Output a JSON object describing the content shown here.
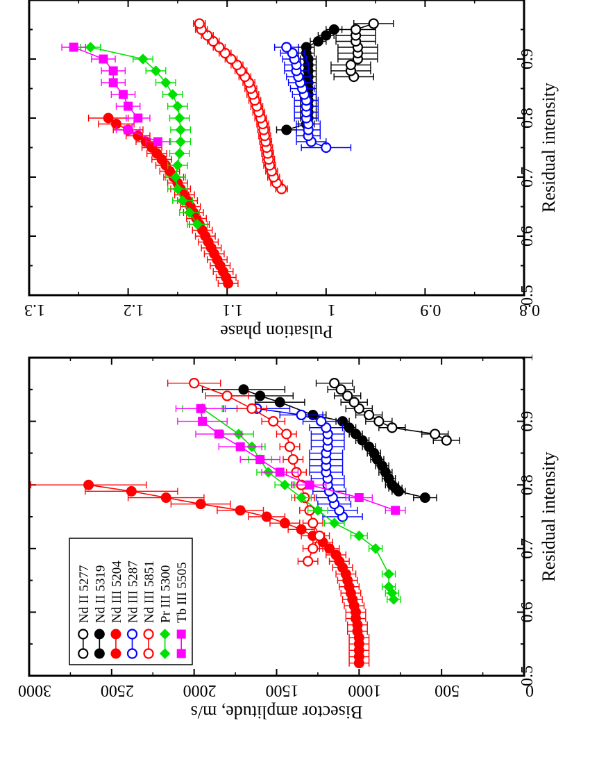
{
  "chart_data": [
    {
      "id": "amplitude",
      "type": "scatter",
      "title": "",
      "xlabel": "Residual intensity",
      "ylabel": "Bisector amplitude, m/s",
      "xlim": [
        0.5,
        1.0
      ],
      "ylim": [
        0,
        3000
      ],
      "xticks": [
        0.5,
        0.6,
        0.7,
        0.8,
        0.9,
        1.0
      ],
      "xtick_labels": [
        "0.5",
        "0.6",
        "0.7",
        "0.8",
        "0.9",
        "1"
      ],
      "yticks": [
        0,
        500,
        1000,
        1500,
        2000,
        2500,
        3000
      ],
      "ytick_labels": [
        "0",
        "500",
        "1000",
        "1500",
        "2000",
        "2500",
        "3000"
      ],
      "legend_position": "top-left",
      "series": [
        {
          "name": "Nd II  5277",
          "color": "#000000",
          "marker": "circle-open",
          "x": [
            0.87,
            0.88,
            0.89,
            0.9,
            0.91,
            0.92,
            0.93,
            0.94,
            0.95,
            0.96
          ],
          "y": [
            470,
            540,
            800,
            880,
            940,
            1000,
            1030,
            1070,
            1110,
            1150
          ],
          "err": [
            80,
            80,
            80,
            80,
            80,
            80,
            80,
            80,
            80,
            110
          ]
        },
        {
          "name": "Nd  II 5319",
          "color": "#000000",
          "marker": "circle-filled",
          "x": [
            0.78,
            0.79,
            0.795,
            0.8,
            0.81,
            0.82,
            0.83,
            0.84,
            0.85,
            0.86,
            0.87,
            0.88,
            0.89,
            0.9,
            0.91,
            0.93,
            0.94,
            0.95
          ],
          "y": [
            600,
            760,
            780,
            800,
            820,
            840,
            860,
            890,
            910,
            940,
            980,
            1020,
            1060,
            1100,
            1280,
            1480,
            1600,
            1700
          ],
          "err": [
            70,
            40,
            40,
            40,
            40,
            40,
            40,
            40,
            40,
            40,
            40,
            40,
            40,
            40,
            80,
            150,
            200,
            250
          ]
        },
        {
          "name": "Nd III 5204",
          "color": "#ff0000",
          "marker": "circle-filled",
          "x": [
            0.52,
            0.53,
            0.54,
            0.55,
            0.56,
            0.57,
            0.58,
            0.59,
            0.6,
            0.61,
            0.62,
            0.63,
            0.64,
            0.65,
            0.66,
            0.67,
            0.68,
            0.69,
            0.7,
            0.71,
            0.72,
            0.73,
            0.74,
            0.75,
            0.76,
            0.77,
            0.78,
            0.79,
            0.8
          ],
          "y": [
            1000,
            1000,
            1000,
            1000,
            1000,
            1010,
            1010,
            1020,
            1020,
            1030,
            1040,
            1050,
            1060,
            1070,
            1080,
            1100,
            1120,
            1140,
            1180,
            1220,
            1280,
            1350,
            1450,
            1560,
            1720,
            1960,
            2170,
            2380,
            2640
          ],
          "err": [
            60,
            60,
            60,
            60,
            60,
            60,
            60,
            60,
            60,
            60,
            60,
            60,
            60,
            60,
            60,
            60,
            60,
            60,
            60,
            60,
            70,
            80,
            90,
            110,
            140,
            180,
            230,
            280,
            350
          ]
        },
        {
          "name": "Nd III 5287",
          "color": "#0000ff",
          "marker": "circle-open",
          "x": [
            0.75,
            0.76,
            0.77,
            0.78,
            0.79,
            0.8,
            0.81,
            0.82,
            0.83,
            0.84,
            0.85,
            0.86,
            0.87,
            0.88,
            0.89,
            0.9,
            0.91,
            0.92
          ],
          "y": [
            1100,
            1120,
            1150,
            1160,
            1180,
            1190,
            1190,
            1200,
            1200,
            1200,
            1200,
            1190,
            1190,
            1190,
            1200,
            1230,
            1350,
            1620
          ],
          "err": [
            120,
            110,
            100,
            100,
            100,
            100,
            100,
            100,
            100,
            100,
            100,
            100,
            100,
            100,
            100,
            110,
            130,
            200
          ]
        },
        {
          "name": "Nd III 5851",
          "color": "#ff0000",
          "marker": "circle-open",
          "x": [
            0.68,
            0.7,
            0.72,
            0.74,
            0.76,
            0.78,
            0.8,
            0.82,
            0.84,
            0.86,
            0.88,
            0.9,
            0.92,
            0.94,
            0.96
          ],
          "y": [
            1310,
            1280,
            1240,
            1280,
            1300,
            1330,
            1350,
            1380,
            1400,
            1420,
            1440,
            1520,
            1650,
            1800,
            2000
          ],
          "err": [
            60,
            60,
            60,
            60,
            60,
            60,
            60,
            60,
            60,
            60,
            60,
            70,
            90,
            130,
            160
          ]
        },
        {
          "name": "Pr III 5300",
          "color": "#00e000",
          "marker": "diamond",
          "x": [
            0.62,
            0.63,
            0.64,
            0.66,
            0.7,
            0.72,
            0.74,
            0.76,
            0.78,
            0.8,
            0.82,
            0.84,
            0.86,
            0.88,
            0.92
          ],
          "y": [
            790,
            800,
            820,
            820,
            900,
            1000,
            1150,
            1250,
            1350,
            1450,
            1550,
            1600,
            1650,
            1730,
            1950
          ],
          "err": [
            40,
            40,
            40,
            40,
            40,
            50,
            60,
            60,
            60,
            60,
            70,
            70,
            80,
            90,
            120
          ]
        },
        {
          "name": "Tb III 5505",
          "color": "#ff00ff",
          "marker": "square",
          "x": [
            0.76,
            0.78,
            0.8,
            0.82,
            0.84,
            0.86,
            0.88,
            0.9,
            0.92
          ],
          "y": [
            780,
            1000,
            1300,
            1480,
            1600,
            1720,
            1850,
            1950,
            1960
          ],
          "err": [
            60,
            80,
            100,
            110,
            120,
            130,
            140,
            150,
            150
          ]
        }
      ]
    },
    {
      "id": "phase",
      "type": "scatter",
      "title": "",
      "xlabel": "Residual intensity",
      "ylabel": "Pulsation phase",
      "xlim": [
        0.5,
        1.0
      ],
      "ylim": [
        0.8,
        1.3
      ],
      "xticks": [
        0.5,
        0.6,
        0.7,
        0.8,
        0.9
      ],
      "xtick_labels": [
        "0.5",
        "0.6",
        "0.7",
        "0.8",
        "0.9"
      ],
      "yticks": [
        0.8,
        0.9,
        1.0,
        1.1,
        1.2,
        1.3
      ],
      "ytick_labels": [
        "0.8",
        "0.9",
        "1",
        "1.1",
        "1.2",
        "1.3"
      ],
      "series": [
        {
          "name": "Nd II  5277",
          "color": "#000000",
          "marker": "circle-open",
          "x": [
            0.87,
            0.88,
            0.89,
            0.9,
            0.91,
            0.92,
            0.93,
            0.94,
            0.95,
            0.96
          ],
          "y": [
            0.972,
            0.975,
            0.975,
            0.968,
            0.968,
            0.968,
            0.97,
            0.97,
            0.97,
            0.952
          ],
          "err": [
            0.02,
            0.02,
            0.02,
            0.02,
            0.02,
            0.02,
            0.02,
            0.02,
            0.02,
            0.02
          ]
        },
        {
          "name": "Nd  II 5319",
          "color": "#000000",
          "marker": "circle-filled",
          "x": [
            0.78,
            0.79,
            0.8,
            0.81,
            0.82,
            0.83,
            0.84,
            0.85,
            0.86,
            0.87,
            0.88,
            0.89,
            0.9,
            0.91,
            0.92,
            0.93,
            0.94,
            0.95
          ],
          "y": [
            1.04,
            1.02,
            1.018,
            1.018,
            1.018,
            1.018,
            1.018,
            1.018,
            1.018,
            1.018,
            1.018,
            1.018,
            1.018,
            1.02,
            1.02,
            1.008,
            1.0,
            0.992
          ],
          "err": [
            0.01,
            0.008,
            0.008,
            0.008,
            0.008,
            0.008,
            0.008,
            0.008,
            0.008,
            0.008,
            0.008,
            0.008,
            0.008,
            0.008,
            0.008,
            0.008,
            0.008,
            0.008
          ]
        },
        {
          "name": "Nd III 5204",
          "color": "#ff0000",
          "marker": "circle-filled",
          "x": [
            0.52,
            0.53,
            0.54,
            0.55,
            0.56,
            0.57,
            0.58,
            0.59,
            0.6,
            0.61,
            0.62,
            0.63,
            0.64,
            0.65,
            0.66,
            0.67,
            0.68,
            0.69,
            0.7,
            0.71,
            0.72,
            0.73,
            0.74,
            0.75,
            0.76,
            0.77,
            0.78,
            0.79,
            0.8
          ],
          "y": [
            1.099,
            1.101,
            1.104,
            1.107,
            1.11,
            1.113,
            1.116,
            1.119,
            1.122,
            1.125,
            1.128,
            1.131,
            1.134,
            1.137,
            1.14,
            1.143,
            1.147,
            1.15,
            1.154,
            1.158,
            1.162,
            1.166,
            1.171,
            1.176,
            1.182,
            1.19,
            1.2,
            1.212,
            1.22
          ],
          "err": [
            0.01,
            0.01,
            0.01,
            0.01,
            0.01,
            0.01,
            0.01,
            0.01,
            0.01,
            0.01,
            0.01,
            0.01,
            0.01,
            0.01,
            0.01,
            0.01,
            0.01,
            0.01,
            0.01,
            0.01,
            0.01,
            0.01,
            0.01,
            0.01,
            0.01,
            0.012,
            0.015,
            0.018,
            0.02
          ]
        },
        {
          "name": "Nd III 5287",
          "color": "#0000ff",
          "marker": "circle-open",
          "x": [
            0.75,
            0.76,
            0.77,
            0.78,
            0.79,
            0.8,
            0.81,
            0.82,
            0.83,
            0.84,
            0.85,
            0.86,
            0.87,
            0.88,
            0.89,
            0.9,
            0.91,
            0.92
          ],
          "y": [
            1.0,
            1.015,
            1.018,
            1.018,
            1.018,
            1.02,
            1.02,
            1.02,
            1.02,
            1.022,
            1.024,
            1.026,
            1.028,
            1.03,
            1.03,
            1.032,
            1.034,
            1.04
          ],
          "err": [
            0.025,
            0.015,
            0.012,
            0.012,
            0.012,
            0.012,
            0.012,
            0.012,
            0.012,
            0.012,
            0.012,
            0.012,
            0.012,
            0.012,
            0.012,
            0.012,
            0.012,
            0.012
          ]
        },
        {
          "name": "Nd III 5851",
          "color": "#ff0000",
          "marker": "circle-open",
          "x": [
            0.68,
            0.69,
            0.7,
            0.71,
            0.72,
            0.73,
            0.74,
            0.75,
            0.76,
            0.77,
            0.78,
            0.79,
            0.8,
            0.81,
            0.82,
            0.83,
            0.84,
            0.85,
            0.86,
            0.87,
            0.88,
            0.89,
            0.9,
            0.91,
            0.92,
            0.93,
            0.94,
            0.95,
            0.96
          ],
          "y": [
            1.045,
            1.05,
            1.053,
            1.055,
            1.057,
            1.058,
            1.059,
            1.06,
            1.061,
            1.062,
            1.063,
            1.064,
            1.066,
            1.068,
            1.07,
            1.072,
            1.074,
            1.076,
            1.078,
            1.082,
            1.086,
            1.09,
            1.096,
            1.102,
            1.108,
            1.114,
            1.12,
            1.126,
            1.128
          ],
          "err": [
            0.006,
            0.006,
            0.006,
            0.006,
            0.006,
            0.006,
            0.006,
            0.006,
            0.006,
            0.006,
            0.006,
            0.006,
            0.006,
            0.006,
            0.006,
            0.006,
            0.006,
            0.006,
            0.006,
            0.006,
            0.006,
            0.006,
            0.006,
            0.006,
            0.006,
            0.006,
            0.006,
            0.006,
            0.006
          ]
        },
        {
          "name": "Pr III 5300",
          "color": "#00e000",
          "marker": "diamond",
          "x": [
            0.62,
            0.64,
            0.66,
            0.68,
            0.7,
            0.72,
            0.74,
            0.76,
            0.78,
            0.8,
            0.82,
            0.84,
            0.86,
            0.88,
            0.9,
            0.92
          ],
          "y": [
            1.13,
            1.138,
            1.145,
            1.15,
            1.152,
            1.15,
            1.148,
            1.147,
            1.147,
            1.148,
            1.15,
            1.155,
            1.162,
            1.172,
            1.185,
            1.238
          ],
          "err": [
            0.01,
            0.01,
            0.01,
            0.01,
            0.01,
            0.01,
            0.01,
            0.01,
            0.01,
            0.01,
            0.01,
            0.01,
            0.01,
            0.01,
            0.01,
            0.01
          ]
        },
        {
          "name": "Tb III 5505",
          "color": "#ff00ff",
          "marker": "square",
          "x": [
            0.76,
            0.78,
            0.8,
            0.82,
            0.84,
            0.86,
            0.88,
            0.9,
            0.92
          ],
          "y": [
            1.17,
            1.2,
            1.19,
            1.2,
            1.205,
            1.215,
            1.215,
            1.225,
            1.255
          ],
          "err": [
            0.012,
            0.012,
            0.012,
            0.012,
            0.012,
            0.012,
            0.012,
            0.012,
            0.012
          ]
        }
      ]
    }
  ]
}
